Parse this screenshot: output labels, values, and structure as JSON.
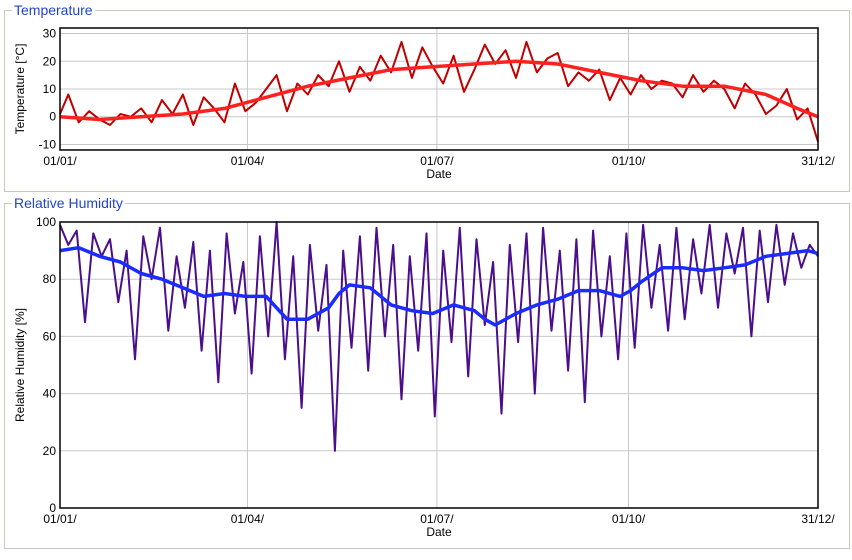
{
  "panels": [
    {
      "group_title": "Temperature",
      "raw_color": "#c00000",
      "smooth_color": "#ff2020"
    },
    {
      "group_title": "Relative Humidity",
      "raw_color": "#4b0f8c",
      "smooth_color": "#1a2cff"
    }
  ],
  "chart_data": [
    {
      "type": "line",
      "title": "Temperature",
      "xlabel": "Date",
      "ylabel": "Temperature [°C]",
      "ylim": [
        -12,
        32
      ],
      "yticks": [
        -10,
        0,
        10,
        20,
        30
      ],
      "xticks": [
        "01/01/",
        "01/04/",
        "01/07/",
        "01/10/",
        "31/12/"
      ],
      "xtick_days": [
        1,
        91,
        182,
        274,
        365
      ],
      "grid": true,
      "series": [
        {
          "role": "daily",
          "color": "#c00000",
          "x": [
            1,
            5,
            10,
            15,
            20,
            25,
            30,
            35,
            40,
            45,
            50,
            55,
            60,
            65,
            70,
            75,
            80,
            85,
            90,
            95,
            100,
            105,
            110,
            115,
            120,
            125,
            130,
            135,
            140,
            145,
            150,
            155,
            160,
            165,
            170,
            175,
            180,
            185,
            190,
            195,
            200,
            205,
            210,
            215,
            220,
            225,
            230,
            235,
            240,
            245,
            250,
            255,
            260,
            265,
            270,
            275,
            280,
            285,
            290,
            295,
            300,
            305,
            310,
            315,
            320,
            325,
            330,
            335,
            340,
            345,
            350,
            355,
            360,
            365
          ],
          "values": [
            1,
            8,
            -2,
            2,
            -1,
            -3,
            1,
            0,
            3,
            -2,
            6,
            1,
            8,
            -3,
            7,
            3,
            -2,
            12,
            2,
            5,
            10,
            15,
            2,
            12,
            8,
            15,
            11,
            20,
            9,
            18,
            13,
            22,
            16,
            27,
            14,
            25,
            18,
            12,
            22,
            9,
            17,
            26,
            19,
            24,
            14,
            27,
            16,
            21,
            23,
            11,
            16,
            13,
            17,
            6,
            14,
            8,
            15,
            10,
            13,
            12,
            7,
            15,
            9,
            13,
            10,
            3,
            12,
            8,
            1,
            4,
            10,
            -1,
            3,
            -9
          ]
        },
        {
          "role": "smoothed",
          "color": "#ff2020",
          "x": [
            1,
            20,
            40,
            60,
            80,
            100,
            120,
            140,
            160,
            180,
            200,
            220,
            240,
            260,
            280,
            300,
            320,
            340,
            355,
            365
          ],
          "values": [
            0,
            -1,
            0,
            1,
            3,
            7,
            11,
            14,
            17,
            18,
            19,
            20,
            19,
            16,
            13,
            11,
            11,
            8,
            3,
            0
          ]
        }
      ]
    },
    {
      "type": "line",
      "title": "Relative Humidity",
      "xlabel": "Date",
      "ylabel": "Relative Humidity [%]",
      "ylim": [
        0,
        100
      ],
      "yticks": [
        0,
        20,
        40,
        60,
        80,
        100
      ],
      "xticks": [
        "01/01/",
        "01/04/",
        "01/07/",
        "01/10/",
        "31/12/"
      ],
      "xtick_days": [
        1,
        91,
        182,
        274,
        365
      ],
      "grid": true,
      "series": [
        {
          "role": "daily",
          "color": "#4b0f8c",
          "x": [
            1,
            5,
            9,
            13,
            17,
            21,
            25,
            29,
            33,
            37,
            41,
            45,
            49,
            53,
            57,
            61,
            65,
            69,
            73,
            77,
            81,
            85,
            89,
            93,
            97,
            101,
            105,
            109,
            113,
            117,
            121,
            125,
            129,
            133,
            137,
            141,
            145,
            149,
            153,
            157,
            161,
            165,
            169,
            173,
            177,
            181,
            185,
            189,
            193,
            197,
            201,
            205,
            209,
            213,
            217,
            221,
            225,
            229,
            233,
            237,
            241,
            245,
            249,
            253,
            257,
            261,
            265,
            269,
            273,
            277,
            281,
            285,
            289,
            293,
            297,
            301,
            305,
            309,
            313,
            317,
            321,
            325,
            329,
            333,
            337,
            341,
            345,
            349,
            353,
            357,
            361,
            365
          ],
          "values": [
            99,
            92,
            97,
            65,
            96,
            88,
            94,
            72,
            90,
            52,
            95,
            80,
            98,
            62,
            88,
            70,
            93,
            55,
            90,
            44,
            96,
            68,
            86,
            47,
            95,
            60,
            100,
            52,
            88,
            35,
            92,
            62,
            85,
            20,
            90,
            56,
            95,
            48,
            98,
            60,
            92,
            38,
            88,
            55,
            96,
            32,
            90,
            58,
            98,
            46,
            94,
            64,
            86,
            33,
            92,
            58,
            96,
            40,
            98,
            62,
            90,
            48,
            94,
            37,
            97,
            60,
            88,
            52,
            96,
            56,
            99,
            70,
            92,
            62,
            98,
            66,
            94,
            75,
            99,
            70,
            96,
            82,
            98,
            60,
            97,
            72,
            99,
            78,
            96,
            84,
            92,
            88
          ]
        },
        {
          "role": "smoothed",
          "color": "#1a2cff",
          "x": [
            1,
            10,
            20,
            30,
            40,
            50,
            60,
            70,
            80,
            90,
            100,
            105,
            110,
            120,
            130,
            135,
            140,
            150,
            160,
            170,
            180,
            190,
            200,
            205,
            210,
            220,
            230,
            240,
            250,
            260,
            270,
            275,
            280,
            290,
            300,
            310,
            320,
            330,
            340,
            350,
            360,
            365
          ],
          "values": [
            90,
            91,
            88,
            86,
            82,
            80,
            77,
            74,
            75,
            74,
            74,
            70,
            66,
            66,
            70,
            75,
            78,
            77,
            71,
            69,
            68,
            71,
            69,
            66,
            64,
            68,
            71,
            73,
            76,
            76,
            74,
            76,
            79,
            84,
            84,
            83,
            84,
            85,
            88,
            89,
            90,
            89
          ]
        }
      ]
    }
  ]
}
